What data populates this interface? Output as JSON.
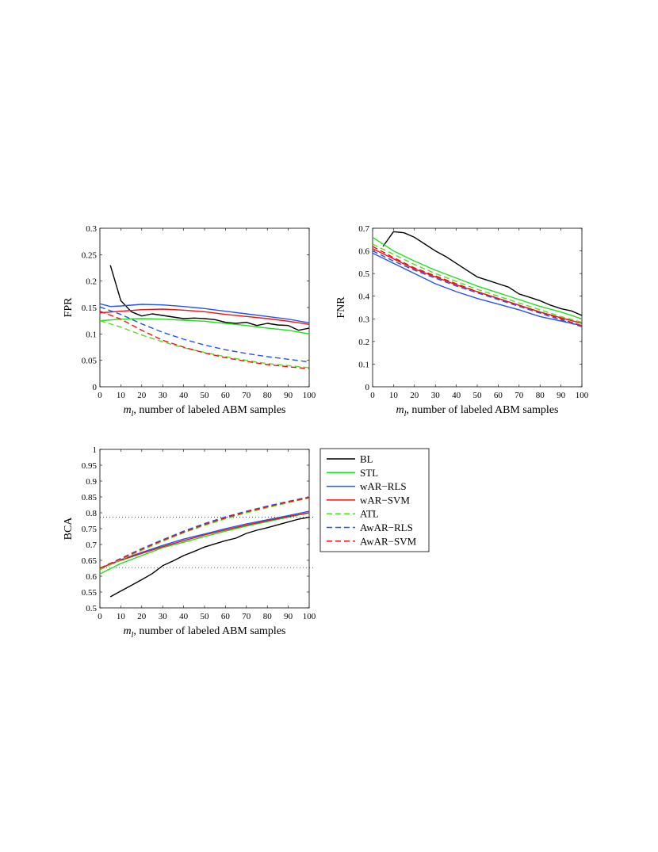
{
  "figure": {
    "xlabel_var": "m",
    "xlabel_sub": "l",
    "xlabel_rest": ", number of labeled ABM samples"
  },
  "legend": {
    "items": [
      {
        "label": "BL",
        "color": "#000000",
        "dash": false
      },
      {
        "label": "STL",
        "color": "#22dd22",
        "dash": false
      },
      {
        "label": "wAR−RLS",
        "color": "#2255ee",
        "dash": false
      },
      {
        "label": "wAR−SVM",
        "color": "#ee1111",
        "dash": false
      },
      {
        "label": "ATL",
        "color": "#55dd22",
        "dash": true
      },
      {
        "label": "AwAR−RLS",
        "color": "#2255ee",
        "dash": true
      },
      {
        "label": "AwAR−SVM",
        "color": "#ee1111",
        "dash": true
      }
    ]
  },
  "chart_data": [
    {
      "id": "fpr",
      "type": "line",
      "title": "",
      "ylabel": "FPR",
      "xlabel": "m_l, number of labeled ABM samples",
      "xlim": [
        0,
        100
      ],
      "ylim": [
        0,
        0.3
      ],
      "xticks": [
        "0",
        "10",
        "20",
        "30",
        "40",
        "50",
        "60",
        "70",
        "80",
        "90",
        "100"
      ],
      "yticks": [
        "0",
        "0.05",
        "0.1",
        "0.15",
        "0.2",
        "0.25",
        "0.3"
      ],
      "ytick_values": [
        0,
        0.05,
        0.1,
        0.15,
        0.2,
        0.25,
        0.3
      ],
      "hlines": [],
      "series": [
        {
          "name": "BL",
          "x": [
            5,
            10,
            15,
            20,
            25,
            30,
            35,
            40,
            45,
            50,
            55,
            60,
            65,
            70,
            75,
            80,
            85,
            90,
            95,
            100
          ],
          "y": [
            0.23,
            0.163,
            0.142,
            0.134,
            0.138,
            0.135,
            0.132,
            0.129,
            0.13,
            0.129,
            0.127,
            0.122,
            0.12,
            0.122,
            0.116,
            0.12,
            0.117,
            0.116,
            0.107,
            0.111
          ]
        },
        {
          "name": "STL",
          "x": [
            0,
            10,
            20,
            30,
            40,
            50,
            60,
            70,
            80,
            90,
            100
          ],
          "y": [
            0.125,
            0.128,
            0.129,
            0.128,
            0.126,
            0.124,
            0.12,
            0.116,
            0.111,
            0.107,
            0.1
          ]
        },
        {
          "name": "wAR−RLS",
          "x": [
            0,
            5,
            10,
            20,
            30,
            40,
            50,
            60,
            70,
            80,
            90,
            100
          ],
          "y": [
            0.157,
            0.152,
            0.153,
            0.156,
            0.155,
            0.152,
            0.148,
            0.143,
            0.138,
            0.133,
            0.128,
            0.121
          ]
        },
        {
          "name": "wAR−SVM",
          "x": [
            0,
            10,
            20,
            30,
            40,
            50,
            60,
            70,
            80,
            90,
            100
          ],
          "y": [
            0.14,
            0.143,
            0.146,
            0.147,
            0.145,
            0.142,
            0.137,
            0.133,
            0.129,
            0.124,
            0.118
          ]
        },
        {
          "name": "ATL",
          "x": [
            0,
            10,
            20,
            30,
            40,
            50,
            60,
            70,
            80,
            90,
            100
          ],
          "y": [
            0.125,
            0.113,
            0.098,
            0.085,
            0.074,
            0.065,
            0.057,
            0.05,
            0.044,
            0.04,
            0.036
          ]
        },
        {
          "name": "AwAR−RLS",
          "x": [
            0,
            10,
            20,
            30,
            40,
            50,
            60,
            70,
            80,
            90,
            100
          ],
          "y": [
            0.151,
            0.137,
            0.119,
            0.103,
            0.09,
            0.079,
            0.07,
            0.063,
            0.057,
            0.052,
            0.047
          ]
        },
        {
          "name": "AwAR−SVM",
          "x": [
            0,
            10,
            20,
            30,
            40,
            50,
            60,
            70,
            80,
            90,
            100
          ],
          "y": [
            0.143,
            0.128,
            0.107,
            0.088,
            0.075,
            0.064,
            0.055,
            0.048,
            0.042,
            0.038,
            0.034
          ]
        }
      ]
    },
    {
      "id": "fnr",
      "type": "line",
      "title": "",
      "ylabel": "FNR",
      "xlabel": "m_l, number of labeled ABM samples",
      "xlim": [
        0,
        100
      ],
      "ylim": [
        0,
        0.7
      ],
      "xticks": [
        "0",
        "10",
        "20",
        "30",
        "40",
        "50",
        "60",
        "70",
        "80",
        "90",
        "100"
      ],
      "yticks": [
        "0",
        "0.1",
        "0.2",
        "0.3",
        "0.4",
        "0.5",
        "0.6",
        "0.7"
      ],
      "ytick_values": [
        0,
        0.1,
        0.2,
        0.3,
        0.4,
        0.5,
        0.6,
        0.7
      ],
      "hlines": [],
      "series": [
        {
          "name": "BL",
          "x": [
            5,
            10,
            15,
            20,
            25,
            30,
            35,
            40,
            45,
            50,
            55,
            60,
            65,
            70,
            75,
            80,
            85,
            90,
            95,
            100
          ],
          "y": [
            0.62,
            0.685,
            0.68,
            0.66,
            0.63,
            0.6,
            0.575,
            0.545,
            0.515,
            0.485,
            0.47,
            0.455,
            0.44,
            0.41,
            0.395,
            0.38,
            0.36,
            0.345,
            0.335,
            0.315
          ]
        },
        {
          "name": "STL",
          "x": [
            0,
            10,
            20,
            30,
            40,
            50,
            60,
            70,
            80,
            90,
            100
          ],
          "y": [
            0.66,
            0.6,
            0.555,
            0.515,
            0.48,
            0.445,
            0.415,
            0.385,
            0.355,
            0.33,
            0.3
          ]
        },
        {
          "name": "wAR−RLS",
          "x": [
            0,
            10,
            20,
            30,
            40,
            50,
            60,
            70,
            80,
            90,
            100
          ],
          "y": [
            0.59,
            0.545,
            0.5,
            0.455,
            0.42,
            0.39,
            0.365,
            0.34,
            0.31,
            0.29,
            0.27
          ]
        },
        {
          "name": "wAR−SVM",
          "x": [
            0,
            10,
            20,
            30,
            40,
            50,
            60,
            70,
            80,
            90,
            100
          ],
          "y": [
            0.61,
            0.565,
            0.52,
            0.485,
            0.45,
            0.42,
            0.39,
            0.36,
            0.33,
            0.305,
            0.28
          ]
        },
        {
          "name": "ATL",
          "x": [
            0,
            10,
            20,
            30,
            40,
            50,
            60,
            70,
            80,
            90,
            100
          ],
          "y": [
            0.63,
            0.585,
            0.54,
            0.5,
            0.465,
            0.43,
            0.4,
            0.37,
            0.34,
            0.31,
            0.285
          ]
        },
        {
          "name": "AwAR−RLS",
          "x": [
            0,
            10,
            20,
            30,
            40,
            50,
            60,
            70,
            80,
            90,
            100
          ],
          "y": [
            0.6,
            0.555,
            0.515,
            0.48,
            0.445,
            0.415,
            0.385,
            0.355,
            0.325,
            0.295,
            0.265
          ]
        },
        {
          "name": "AwAR−SVM",
          "x": [
            0,
            10,
            20,
            30,
            40,
            50,
            60,
            70,
            80,
            90,
            100
          ],
          "y": [
            0.62,
            0.57,
            0.525,
            0.49,
            0.455,
            0.42,
            0.39,
            0.36,
            0.33,
            0.3,
            0.27
          ]
        }
      ]
    },
    {
      "id": "bca",
      "type": "line",
      "title": "",
      "ylabel": "BCA",
      "xlabel": "m_l, number of labeled ABM samples",
      "xlim": [
        0,
        100
      ],
      "ylim": [
        0.5,
        1
      ],
      "xticks": [
        "0",
        "10",
        "20",
        "30",
        "40",
        "50",
        "60",
        "70",
        "80",
        "90",
        "100"
      ],
      "yticks": [
        "0.5",
        "0.55",
        "0.6",
        "0.65",
        "0.7",
        "0.75",
        "0.8",
        "0.85",
        "0.9",
        "0.95",
        "1"
      ],
      "ytick_values": [
        0.5,
        0.55,
        0.6,
        0.65,
        0.7,
        0.75,
        0.8,
        0.85,
        0.9,
        0.95,
        1
      ],
      "hlines": [
        0.627,
        0.786
      ],
      "series": [
        {
          "name": "BL",
          "x": [
            5,
            10,
            15,
            20,
            25,
            30,
            35,
            40,
            45,
            50,
            55,
            60,
            65,
            70,
            75,
            80,
            85,
            90,
            95,
            100
          ],
          "y": [
            0.535,
            0.553,
            0.571,
            0.589,
            0.608,
            0.633,
            0.648,
            0.665,
            0.678,
            0.692,
            0.702,
            0.712,
            0.72,
            0.735,
            0.745,
            0.753,
            0.762,
            0.771,
            0.78,
            0.786
          ]
        },
        {
          "name": "STL",
          "x": [
            0,
            10,
            20,
            30,
            40,
            50,
            60,
            70,
            80,
            90,
            100
          ],
          "y": [
            0.607,
            0.64,
            0.665,
            0.69,
            0.707,
            0.725,
            0.742,
            0.758,
            0.772,
            0.786,
            0.8
          ]
        },
        {
          "name": "wAR−RLS",
          "x": [
            0,
            10,
            20,
            30,
            40,
            50,
            60,
            70,
            80,
            90,
            100
          ],
          "y": [
            0.625,
            0.652,
            0.675,
            0.697,
            0.717,
            0.733,
            0.75,
            0.765,
            0.778,
            0.791,
            0.805
          ]
        },
        {
          "name": "wAR−SVM",
          "x": [
            0,
            10,
            20,
            30,
            40,
            50,
            60,
            70,
            80,
            90,
            100
          ],
          "y": [
            0.625,
            0.65,
            0.672,
            0.693,
            0.712,
            0.73,
            0.746,
            0.761,
            0.775,
            0.788,
            0.8
          ]
        },
        {
          "name": "ATL",
          "x": [
            0,
            10,
            20,
            30,
            40,
            50,
            60,
            70,
            80,
            90,
            100
          ],
          "y": [
            0.62,
            0.652,
            0.682,
            0.71,
            0.737,
            0.76,
            0.781,
            0.8,
            0.816,
            0.832,
            0.847
          ]
        },
        {
          "name": "AwAR−RLS",
          "x": [
            0,
            10,
            20,
            30,
            40,
            50,
            60,
            70,
            80,
            90,
            100
          ],
          "y": [
            0.625,
            0.656,
            0.687,
            0.715,
            0.742,
            0.766,
            0.787,
            0.805,
            0.821,
            0.836,
            0.85
          ]
        },
        {
          "name": "AwAR−SVM",
          "x": [
            0,
            10,
            20,
            30,
            40,
            50,
            60,
            70,
            80,
            90,
            100
          ],
          "y": [
            0.625,
            0.655,
            0.685,
            0.713,
            0.739,
            0.763,
            0.784,
            0.803,
            0.819,
            0.834,
            0.848
          ]
        }
      ]
    }
  ]
}
